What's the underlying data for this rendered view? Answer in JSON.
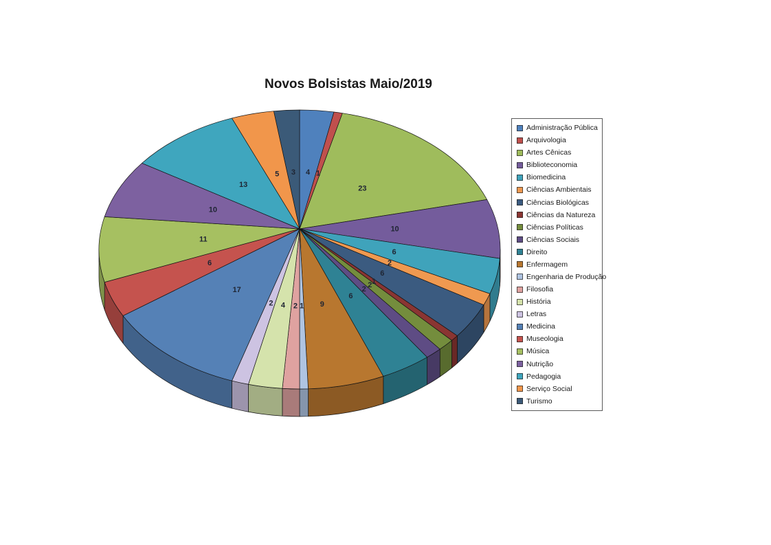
{
  "title": {
    "text": "Novos Bolsistas Maio/2019"
  },
  "chart_data": {
    "type": "pie",
    "style": "3d",
    "title": "Novos Bolsistas Maio/2019",
    "total": 146,
    "direction": "clockwise",
    "start_angle_deg": 0,
    "data_labels": "value",
    "legend_position": "right",
    "categories": [
      "Administração Pública",
      "Arquivologia",
      "Artes Cênicas",
      "Biblioteconomia",
      "Biomedicina",
      "Ciências Ambientais",
      "Ciências Biológicas",
      "Ciências da Natureza",
      "Ciências Políticas",
      "Ciências Sociais",
      "Direito",
      "Enfermagem",
      "Engenharia de Produção",
      "Filosofia",
      "História",
      "Letras",
      "Medicina",
      "Museologia",
      "Música",
      "Nutrição",
      "Pedagogia",
      "Serviço Social",
      "Turismo"
    ],
    "values": [
      4,
      1,
      23,
      10,
      6,
      2,
      6,
      1,
      2,
      2,
      6,
      9,
      1,
      2,
      4,
      2,
      17,
      6,
      11,
      10,
      13,
      5,
      3
    ],
    "colors": [
      "#4F81BD",
      "#C0504D",
      "#9FBC5C",
      "#745C9C",
      "#3FA3BB",
      "#EF9950",
      "#3B5B80",
      "#8A3532",
      "#748D3D",
      "#5E4C84",
      "#2F8294",
      "#B8772F",
      "#AFC4E2",
      "#DFA2A0",
      "#D5E3AC",
      "#CDC3E2",
      "#5581B6",
      "#C5534E",
      "#A6C061",
      "#7D61A0",
      "#3FA6BE",
      "#F1964B",
      "#3B5A78"
    ]
  },
  "style_colors": {
    "background": "#FFFFFF",
    "slice_border": "#141414",
    "label_text": "#1F2533",
    "legend_border": "#595959",
    "title_text": "#1A1A1A"
  }
}
